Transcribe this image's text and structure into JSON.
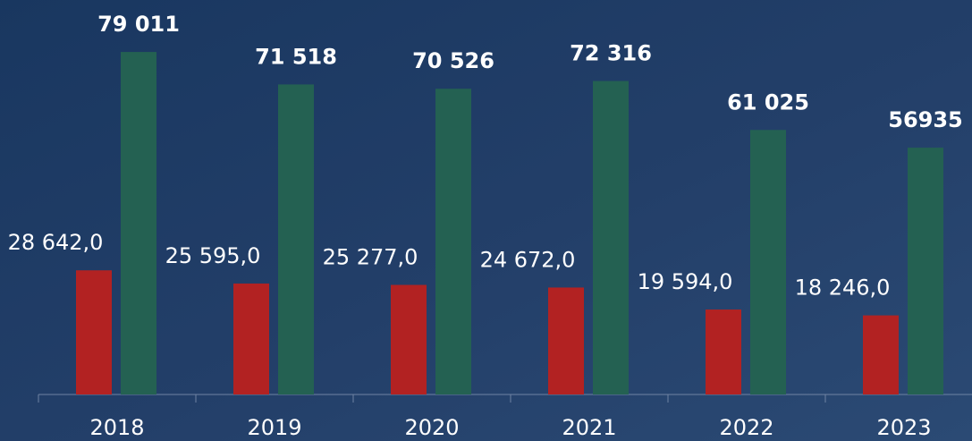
{
  "chart_data": {
    "type": "bar",
    "categories": [
      "2018",
      "2019",
      "2020",
      "2021",
      "2022",
      "2023"
    ],
    "series": [
      {
        "color": "#b22222",
        "values": [
          28642,
          25595,
          25277,
          24672,
          19594,
          18246
        ],
        "value_labels": [
          "28 642,0",
          "25 595,0",
          "25 277,0",
          "24 672,0",
          "19 594,0",
          "18 246,0"
        ]
      },
      {
        "color": "#246152",
        "values": [
          79011,
          71518,
          70526,
          72316,
          61025,
          56935
        ],
        "value_labels": [
          "79 011",
          "71 518",
          "70 526",
          "72 316",
          "61 025",
          "56935"
        ]
      }
    ],
    "ylim": [
      0,
      91000
    ]
  }
}
